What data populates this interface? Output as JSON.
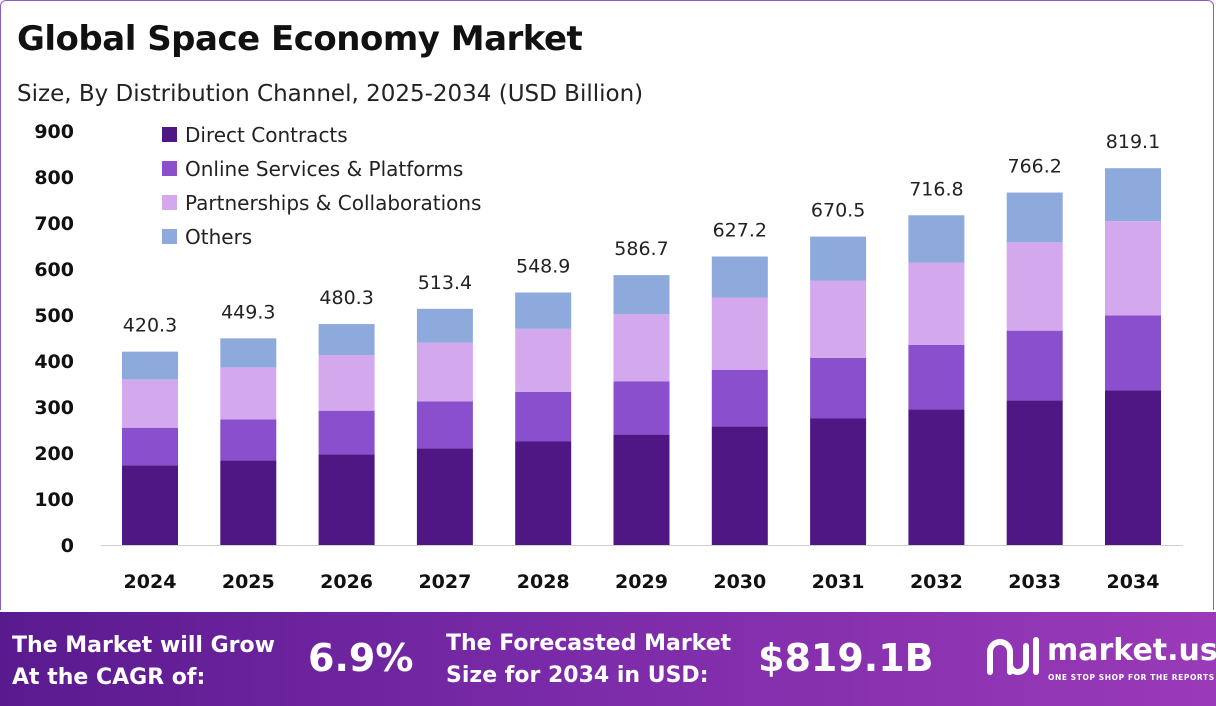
{
  "header": {
    "title": "Global Space Economy Market",
    "subtitle": "Size, By Distribution Channel, 2025-2034 (USD Billion)"
  },
  "chart_data": {
    "type": "bar",
    "stacked": true,
    "categories": [
      "2024",
      "2025",
      "2026",
      "2027",
      "2028",
      "2029",
      "2030",
      "2031",
      "2032",
      "2033",
      "2034"
    ],
    "series": [
      {
        "name": "Direct Contracts",
        "color": "#4e1784",
        "values": [
          173,
          184,
          197,
          210,
          225,
          240,
          258,
          275,
          295,
          314,
          336
        ]
      },
      {
        "name": "Online Services & Platforms",
        "color": "#8a4fcd",
        "values": [
          82,
          89,
          95,
          102,
          108,
          116,
          123,
          132,
          140,
          152,
          163
        ]
      },
      {
        "name": "Partnerships & Collaborations",
        "color": "#d4a8ec",
        "values": [
          105,
          113,
          121,
          128,
          137,
          146,
          157,
          168,
          179,
          192,
          205
        ]
      },
      {
        "name": "Others",
        "color": "#8eaadc",
        "values": [
          60.3,
          63.3,
          67.3,
          73.4,
          78.9,
          84.7,
          89.2,
          95.5,
          102.8,
          108.2,
          115.1
        ]
      }
    ],
    "totals": [
      "420.3",
      "449.3",
      "480.3",
      "513.4",
      "548.9",
      "586.7",
      "627.2",
      "670.5",
      "716.8",
      "766.2",
      "819.1"
    ],
    "yticks": [
      "0",
      "100",
      "200",
      "300",
      "400",
      "500",
      "600",
      "700",
      "800",
      "900"
    ],
    "ylim": [
      0,
      900
    ],
    "grid": false,
    "legend_position": "top-left"
  },
  "footer": {
    "cagr_text_line1": "The Market will Grow",
    "cagr_text_line2": "At the CAGR of:",
    "cagr_value": "6.9%",
    "forecast_text_line1": "The Forecasted Market",
    "forecast_text_line2": "Size for 2034 in USD:",
    "forecast_value": "$819.1B",
    "logo_name": "market.us",
    "logo_tagline": "ONE STOP SHOP FOR THE REPORTS"
  }
}
